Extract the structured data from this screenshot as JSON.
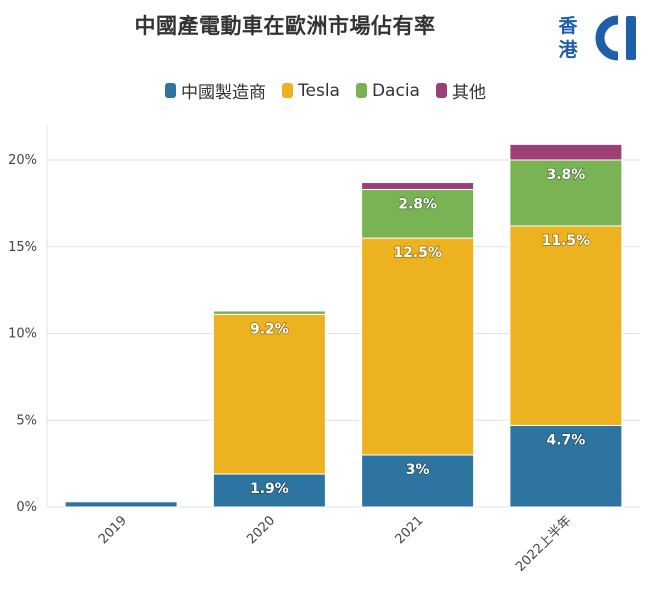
{
  "chart_data": {
    "type": "bar",
    "stacked": true,
    "title": "中國產電動車在歐洲市場佔有率",
    "categories": [
      "2019",
      "2020",
      "2021",
      "2022上半年"
    ],
    "series": [
      {
        "name": "中國製造商",
        "color": "#2e74a0",
        "values": [
          0.3,
          1.9,
          3.0,
          4.7
        ],
        "labels": [
          "",
          "1.9%",
          "3%",
          "4.7%"
        ]
      },
      {
        "name": "Tesla",
        "color": "#ecb21f",
        "values": [
          0,
          9.2,
          12.5,
          11.5
        ],
        "labels": [
          "",
          "9.2%",
          "12.5%",
          "11.5%"
        ]
      },
      {
        "name": "Dacia",
        "color": "#7ab354",
        "values": [
          0,
          0.2,
          2.8,
          3.8
        ],
        "labels": [
          "",
          "",
          "2.8%",
          "3.8%"
        ]
      },
      {
        "name": "其他",
        "color": "#9c3f76",
        "values": [
          0,
          0,
          0.4,
          0.9
        ],
        "labels": [
          "",
          "",
          "",
          ""
        ]
      }
    ],
    "yticks": [
      "0%",
      "5%",
      "10%",
      "15%",
      "20%"
    ],
    "ytick_values": [
      0,
      5,
      10,
      15,
      20
    ],
    "ylim": [
      0,
      22
    ],
    "xlabel": "",
    "ylabel": "",
    "grid": true,
    "legend_position": "top"
  },
  "logo": {
    "line1": "香",
    "line2": "港"
  }
}
